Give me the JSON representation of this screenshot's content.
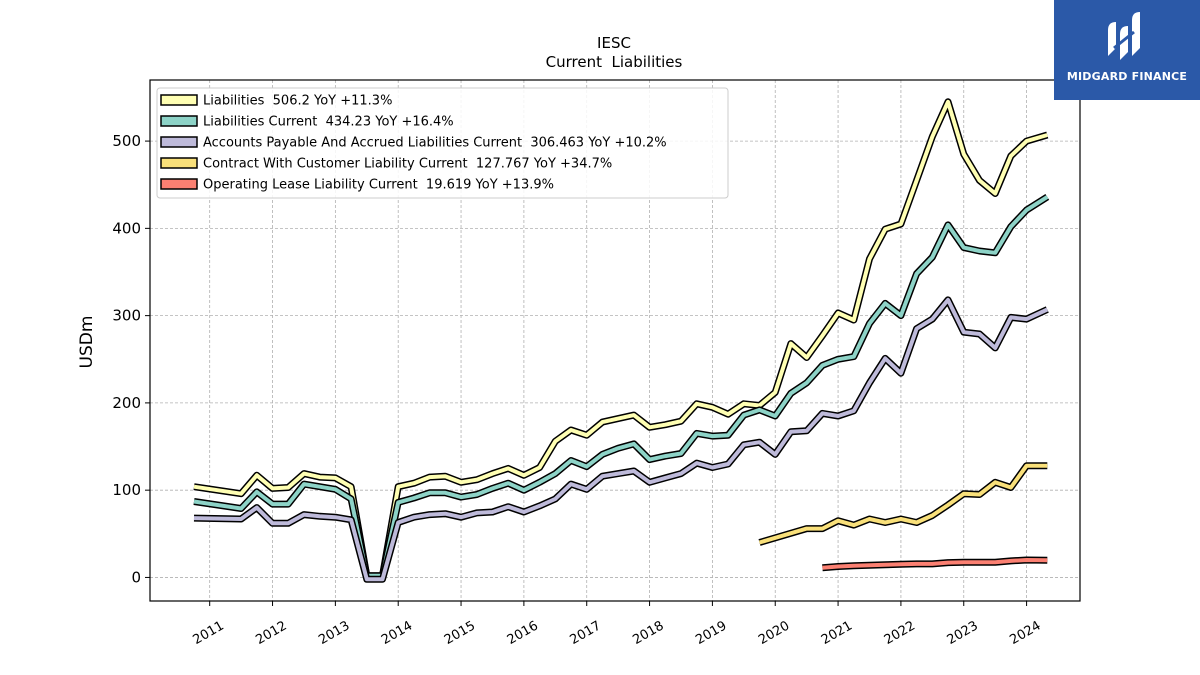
{
  "brand": {
    "name": "MIDGARD FINANCE",
    "bg_color": "#2b59a8"
  },
  "chart_data": {
    "type": "line",
    "title": "IESC",
    "subtitle": "Current  Liabilities",
    "xlabel": "",
    "ylabel": "USDm",
    "xlim": [
      2010.05,
      2024.85
    ],
    "ylim": [
      -27,
      570
    ],
    "x_ticks": [
      2011,
      2012,
      2013,
      2014,
      2015,
      2016,
      2017,
      2018,
      2019,
      2020,
      2021,
      2022,
      2023,
      2024
    ],
    "x_tick_labels": [
      "2011",
      "2012",
      "2013",
      "2014",
      "2015",
      "2016",
      "2017",
      "2018",
      "2019",
      "2020",
      "2021",
      "2022",
      "2023",
      "2024"
    ],
    "y_ticks": [
      0,
      100,
      200,
      300,
      400,
      500
    ],
    "y_tick_labels": [
      "0",
      "100",
      "200",
      "300",
      "400",
      "500"
    ],
    "grid": true,
    "legend_position": "top-left",
    "series": [
      {
        "name": "Liabilities  506.2 YoY +11.3%",
        "color": "#ffffb3",
        "x": [
          2010.75,
          2011.5,
          2011.75,
          2012.0,
          2012.25,
          2012.5,
          2012.75,
          2013.0,
          2013.25,
          2013.5,
          2013.75,
          2014.0,
          2014.25,
          2014.5,
          2014.75,
          2015.0,
          2015.25,
          2015.5,
          2015.75,
          2016.0,
          2016.25,
          2016.5,
          2016.75,
          2017.0,
          2017.25,
          2017.5,
          2017.75,
          2018.0,
          2018.25,
          2018.5,
          2018.75,
          2019.0,
          2019.25,
          2019.5,
          2019.75,
          2020.0,
          2020.25,
          2020.5,
          2020.75,
          2021.0,
          2021.25,
          2021.5,
          2021.75,
          2022.0,
          2022.25,
          2022.5,
          2022.75,
          2023.0,
          2023.25,
          2023.5,
          2023.75,
          2024.0,
          2024.33
        ],
        "values": [
          104,
          96,
          117,
          102,
          103,
          119,
          115,
          114,
          104,
          2,
          2,
          104,
          108,
          115,
          116,
          109,
          112,
          119,
          125,
          117,
          126,
          156,
          169,
          163,
          178,
          182,
          186,
          172,
          175,
          179,
          199,
          195,
          187,
          199,
          197,
          212,
          268,
          252,
          277,
          303,
          295,
          365,
          399,
          405,
          455,
          505,
          545,
          485,
          455,
          440,
          483,
          500,
          507
        ]
      },
      {
        "name": "Liabilities Current  434.23 YoY +16.4%",
        "color": "#8dd3c7",
        "x": [
          2010.75,
          2011.5,
          2011.75,
          2012.0,
          2012.25,
          2012.5,
          2012.75,
          2013.0,
          2013.25,
          2013.5,
          2013.75,
          2014.0,
          2014.25,
          2014.5,
          2014.75,
          2015.0,
          2015.25,
          2015.5,
          2015.75,
          2016.0,
          2016.25,
          2016.5,
          2016.75,
          2017.0,
          2017.25,
          2017.5,
          2017.75,
          2018.0,
          2018.25,
          2018.5,
          2018.75,
          2019.0,
          2019.25,
          2019.5,
          2019.75,
          2020.0,
          2020.25,
          2020.5,
          2020.75,
          2021.0,
          2021.25,
          2021.5,
          2021.75,
          2022.0,
          2022.25,
          2022.5,
          2022.75,
          2023.0,
          2023.25,
          2023.5,
          2023.75,
          2024.0,
          2024.33
        ],
        "values": [
          87,
          79,
          98,
          84,
          84,
          107,
          104,
          101,
          90,
          2,
          2,
          86,
          91,
          97,
          97,
          92,
          95,
          102,
          108,
          100,
          109,
          119,
          134,
          127,
          141,
          148,
          153,
          135,
          139,
          142,
          165,
          162,
          163,
          186,
          192,
          185,
          211,
          223,
          243,
          250,
          253,
          291,
          314,
          300,
          348,
          367,
          404,
          378,
          374,
          372,
          402,
          421,
          436
        ]
      },
      {
        "name": "Accounts Payable And Accrued Liabilities Current  306.463 YoY +10.2%",
        "color": "#bebada",
        "x": [
          2010.75,
          2011.5,
          2011.75,
          2012.0,
          2012.25,
          2012.5,
          2012.75,
          2013.0,
          2013.25,
          2013.5,
          2013.75,
          2014.0,
          2014.25,
          2014.5,
          2014.75,
          2015.0,
          2015.25,
          2015.5,
          2015.75,
          2016.0,
          2016.25,
          2016.5,
          2016.75,
          2017.0,
          2017.25,
          2017.5,
          2017.75,
          2018.0,
          2018.25,
          2018.5,
          2018.75,
          2019.0,
          2019.25,
          2019.5,
          2019.75,
          2020.0,
          2020.25,
          2020.5,
          2020.75,
          2021.0,
          2021.25,
          2021.5,
          2021.75,
          2022.0,
          2022.25,
          2022.5,
          2022.75,
          2023.0,
          2023.25,
          2023.5,
          2023.75,
          2024.0,
          2024.33
        ],
        "values": [
          68,
          67,
          80,
          62,
          62,
          72,
          70,
          69,
          66,
          -2,
          -2,
          63,
          69,
          72,
          73,
          69,
          74,
          75,
          81,
          75,
          82,
          90,
          107,
          101,
          116,
          119,
          122,
          109,
          114,
          119,
          131,
          126,
          130,
          152,
          155,
          141,
          167,
          168,
          188,
          185,
          191,
          223,
          251,
          234,
          285,
          296,
          318,
          281,
          279,
          263,
          298,
          296,
          307
        ]
      },
      {
        "name": "Contract With Customer Liability Current  127.767 YoY +34.7%",
        "color": "#f9e07a",
        "x": [
          2019.75,
          2020.5,
          2020.75,
          2021.0,
          2021.25,
          2021.5,
          2021.75,
          2022.0,
          2022.25,
          2022.5,
          2022.75,
          2023.0,
          2023.25,
          2023.5,
          2023.75,
          2024.0,
          2024.33
        ],
        "values": [
          40,
          56,
          56,
          65,
          60,
          67,
          63,
          67,
          63,
          71,
          83,
          96,
          95,
          109,
          103,
          128,
          128
        ]
      },
      {
        "name": "Operating Lease Liability Current  19.619 YoY +13.9%",
        "color": "#fb8072",
        "x": [
          2020.75,
          2021.0,
          2021.25,
          2021.5,
          2021.75,
          2022.0,
          2022.25,
          2022.5,
          2022.75,
          2023.0,
          2023.25,
          2023.5,
          2023.75,
          2024.0,
          2024.33
        ],
        "values": [
          11,
          12.5,
          13.5,
          14,
          14.5,
          15,
          15.5,
          15.5,
          17,
          17.5,
          17.5,
          17.5,
          19,
          20,
          19.6
        ]
      }
    ]
  }
}
